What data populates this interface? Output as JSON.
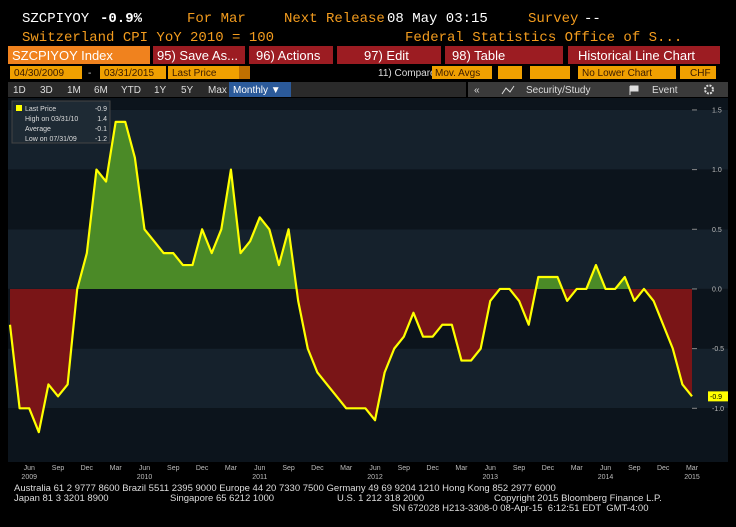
{
  "header": {
    "ticker": "SZCPIYOY",
    "change": "-0.9%",
    "period": "For Mar",
    "next_release_label": "Next Release",
    "next_release": "08 May 03:15",
    "survey_label": "Survey",
    "survey": "--",
    "description": "Switzerland CPI YoY 2010 = 100",
    "source": "Federal Statistics Office of S..."
  },
  "toolbar": {
    "security": "SZCPIYOY Index",
    "buttons": [
      "95) Save As...",
      "96) Actions",
      "97) Edit",
      "98) Table"
    ],
    "view": "Historical Line Chart",
    "start_date": "04/30/2009",
    "date_separator": "-",
    "end_date": "03/31/2015",
    "field": "Last Price",
    "compare": "11) Compare",
    "mov_avgs": "Mov. Avgs",
    "lower_chart": "No Lower Chart",
    "currency": "CHF",
    "periods": [
      "1D",
      "3D",
      "1M",
      "6M",
      "YTD",
      "1Y",
      "5Y",
      "Max"
    ],
    "frequency": "Monthly ▼",
    "collapse": "«",
    "security_study": "Security/Study",
    "event": "Event"
  },
  "chart_data": {
    "type": "line",
    "color": "#ffff00",
    "fill_positive": "#4b8a27",
    "fill_negative": "#7a1517",
    "categories": [
      null,
      null,
      "Jun",
      null,
      null,
      "Sep",
      null,
      null,
      "Dec",
      null,
      null,
      "Mar",
      null,
      null,
      "Jun",
      null,
      null,
      "Sep",
      null,
      null,
      "Dec",
      null,
      null,
      "Mar",
      null,
      null,
      "Jun",
      null,
      null,
      "Sep",
      null,
      null,
      "Dec",
      null,
      null,
      "Mar",
      null,
      null,
      "Jun",
      null,
      null,
      "Sep",
      null,
      null,
      "Dec",
      null,
      null,
      "Mar",
      null,
      null,
      "Jun",
      null,
      null,
      "Sep",
      null,
      null,
      "Dec",
      null,
      null,
      "Mar",
      null,
      null,
      "Jun",
      null,
      null,
      "Sep",
      null,
      null,
      "Dec",
      null,
      null,
      "Mar"
    ],
    "year_labels": [
      null,
      null,
      "2009",
      null,
      null,
      null,
      null,
      null,
      null,
      null,
      null,
      null,
      null,
      null,
      "2010",
      null,
      null,
      null,
      null,
      null,
      null,
      null,
      null,
      null,
      null,
      null,
      "2011",
      null,
      null,
      null,
      null,
      null,
      null,
      null,
      null,
      null,
      null,
      null,
      "2012",
      null,
      null,
      null,
      null,
      null,
      null,
      null,
      null,
      null,
      null,
      null,
      "2013",
      null,
      null,
      null,
      null,
      null,
      null,
      null,
      null,
      null,
      null,
      null,
      "2014",
      null,
      null,
      null,
      null,
      null,
      null,
      null,
      null,
      "2015"
    ],
    "values": [
      -0.3,
      -1.0,
      -1.0,
      -1.2,
      -0.8,
      -0.9,
      -0.8,
      0.0,
      0.3,
      1.0,
      0.9,
      1.4,
      1.4,
      1.1,
      0.5,
      0.4,
      0.3,
      0.3,
      0.2,
      0.2,
      0.5,
      0.3,
      0.5,
      1.0,
      0.3,
      0.4,
      0.6,
      0.5,
      0.2,
      0.5,
      -0.1,
      -0.5,
      -0.7,
      -0.8,
      -0.9,
      -1.0,
      -1.0,
      -1.0,
      -1.1,
      -0.7,
      -0.5,
      -0.4,
      -0.2,
      -0.4,
      -0.4,
      -0.3,
      -0.3,
      -0.6,
      -0.6,
      -0.5,
      -0.1,
      0.0,
      0.0,
      -0.1,
      -0.3,
      0.1,
      0.1,
      0.1,
      -0.1,
      0.0,
      0.0,
      0.2,
      0.0,
      0.0,
      0.1,
      -0.1,
      0.0,
      -0.1,
      -0.3,
      -0.5,
      -0.8,
      -0.9
    ],
    "ylim": [
      -1.45,
      1.6
    ],
    "yticks": [
      1.5,
      {
        "value": 1.0,
        "label": "1.0"
      },
      0.5,
      {
        "value": 0.0,
        "label": "0.0"
      },
      -0.5,
      {
        "value": -1.0,
        "label": "-1.0"
      }
    ],
    "legend": [
      {
        "label": "Last Price",
        "value": -0.9
      },
      {
        "label": "High on 03/31/10",
        "value": 1.4
      },
      {
        "label": "Average",
        "value": -0.1
      },
      {
        "label": "Low on 07/31/09",
        "value": -1.2
      }
    ]
  },
  "footer": {
    "line1": "Australia 61 2 9777 8600 Brazil 5511 2395 9000 Europe 44 20 7330 7500 Germany 49 69 9204 1210 Hong Kong 852 2977 6000",
    "line2": [
      "Japan 81 3 3201 8900",
      "Singapore 65 6212 1000",
      "U.S. 1 212 318 2000",
      "Copyright 2015 Bloomberg Finance L.P."
    ],
    "line3": "SN 672028 H213-3308-0 08-Apr-15  6:12:51 EDT  GMT-4:00"
  }
}
